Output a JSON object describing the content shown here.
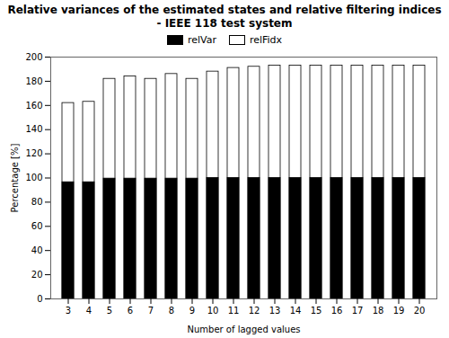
{
  "chart_data": {
    "type": "bar",
    "title": "Relative variances of the estimated states and relative filtering indices - IEEE 118 test system",
    "xlabel": "Number of lagged values",
    "ylabel": "Percentage [%]",
    "categories": [
      3,
      4,
      5,
      6,
      7,
      8,
      9,
      10,
      11,
      12,
      13,
      14,
      15,
      16,
      17,
      18,
      19,
      20
    ],
    "series": [
      {
        "name": "relVar",
        "color": "#000000",
        "values": [
          96.5,
          96.5,
          99.5,
          99.5,
          99.5,
          99.5,
          99.5,
          100,
          100,
          100,
          100,
          100,
          100,
          100,
          100,
          100,
          100,
          100
        ]
      },
      {
        "name": "relFidx",
        "color": "#ffffff",
        "values": [
          162,
          163,
          182,
          184,
          182,
          186,
          182,
          188,
          191,
          192,
          193,
          193,
          193,
          193,
          193,
          193,
          193,
          193
        ]
      }
    ],
    "ylim": [
      0,
      200
    ],
    "yticks": [
      0,
      20,
      40,
      60,
      80,
      100,
      120,
      140,
      160,
      180,
      200
    ],
    "stacked": false,
    "grid": false,
    "legend": "upper center"
  }
}
